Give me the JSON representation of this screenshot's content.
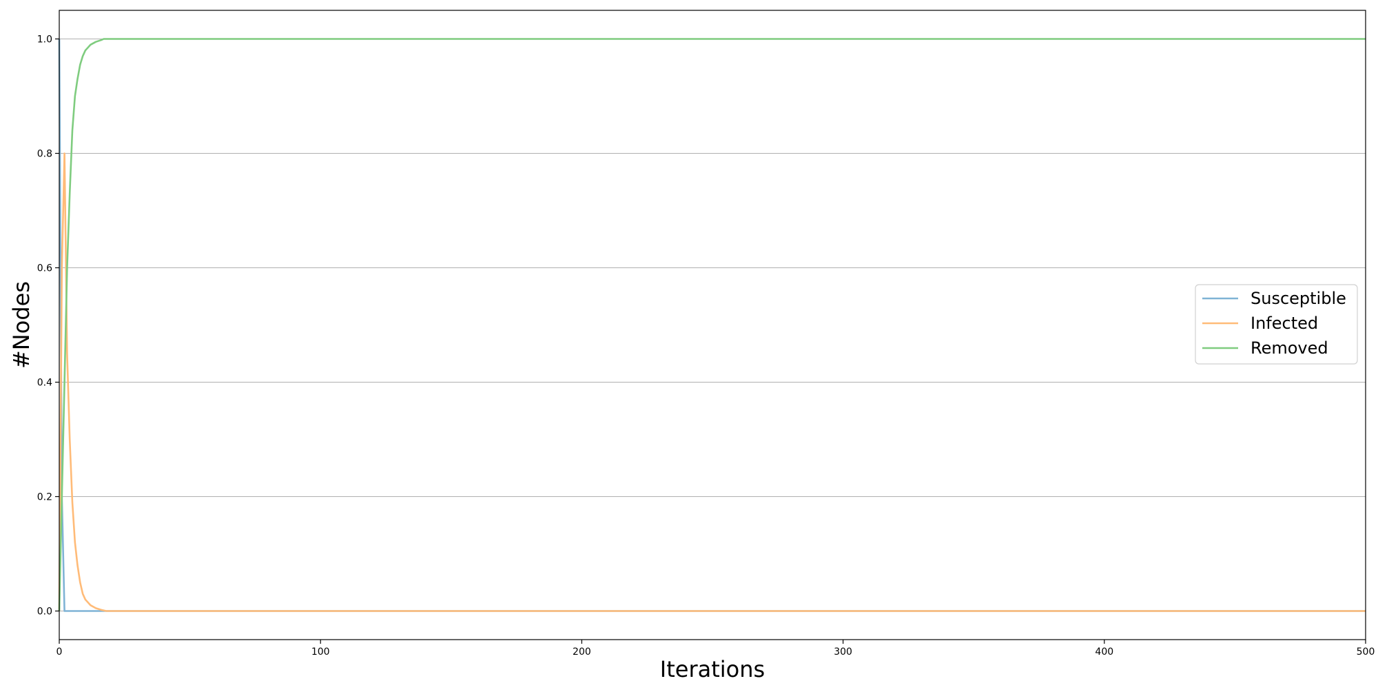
{
  "chart_data": {
    "type": "line",
    "title": "",
    "xlabel": "Iterations",
    "ylabel": "#Nodes",
    "xlim": [
      0,
      500
    ],
    "ylim": [
      -0.05,
      1.05
    ],
    "xticks": [
      0,
      100,
      200,
      300,
      400,
      500
    ],
    "xtick_labels": [
      "0",
      "100",
      "200",
      "300",
      "400",
      "500"
    ],
    "yticks": [
      0.0,
      0.2,
      0.4,
      0.6,
      0.8,
      1.0
    ],
    "ytick_labels": [
      "0.0",
      "0.2",
      "0.4",
      "0.6",
      "0.8",
      "1.0"
    ],
    "grid": "horizontal",
    "legend_position": "center-right",
    "series": [
      {
        "name": "Susceptible",
        "color": "#7fb3d5",
        "x": [
          0,
          1,
          2,
          3,
          5,
          10,
          20,
          50,
          100,
          200,
          300,
          400,
          500
        ],
        "y": [
          1.0,
          0.2,
          0.0,
          0.0,
          0.0,
          0.0,
          0.0,
          0.0,
          0.0,
          0.0,
          0.0,
          0.0,
          0.0
        ]
      },
      {
        "name": "Infected",
        "color": "#ffbb78",
        "x": [
          0,
          1,
          2,
          3,
          4,
          5,
          6,
          7,
          8,
          9,
          10,
          12,
          14,
          16,
          18,
          20,
          50,
          100,
          200,
          300,
          400,
          500
        ],
        "y": [
          0.0,
          0.6,
          0.8,
          0.45,
          0.3,
          0.19,
          0.12,
          0.08,
          0.05,
          0.03,
          0.02,
          0.01,
          0.005,
          0.002,
          0.0,
          0.0,
          0.0,
          0.0,
          0.0,
          0.0,
          0.0,
          0.0
        ]
      },
      {
        "name": "Removed",
        "color": "#7fcc7f",
        "x": [
          0,
          1,
          2,
          3,
          4,
          5,
          6,
          7,
          8,
          9,
          10,
          12,
          14,
          16,
          17,
          20,
          50,
          100,
          200,
          300,
          400,
          500
        ],
        "y": [
          0.0,
          0.2,
          0.4,
          0.6,
          0.73,
          0.84,
          0.9,
          0.93,
          0.955,
          0.97,
          0.98,
          0.99,
          0.995,
          0.998,
          1.0,
          1.0,
          1.0,
          1.0,
          1.0,
          1.0,
          1.0,
          1.0
        ]
      }
    ]
  }
}
